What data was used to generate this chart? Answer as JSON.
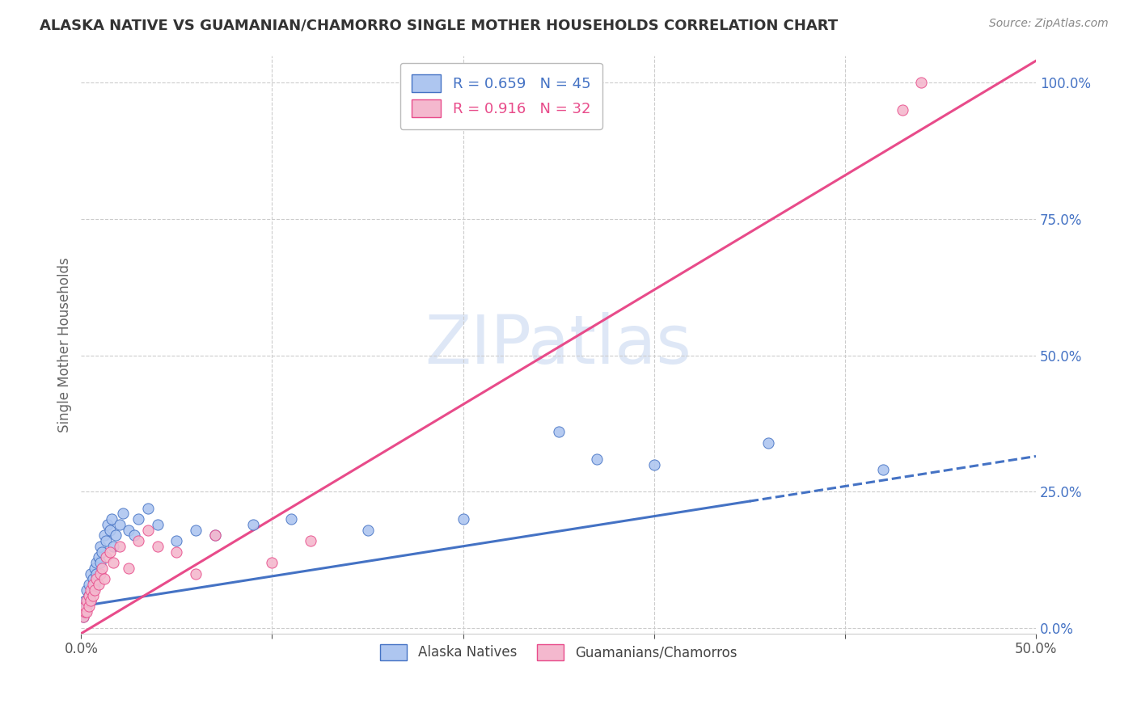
{
  "title": "ALASKA NATIVE VS GUAMANIAN/CHAMORRO SINGLE MOTHER HOUSEHOLDS CORRELATION CHART",
  "source": "Source: ZipAtlas.com",
  "ylabel": "Single Mother Households",
  "xlim": [
    0.0,
    0.5
  ],
  "ylim": [
    -0.01,
    1.05
  ],
  "yticks_right": [
    0.0,
    0.25,
    0.5,
    0.75,
    1.0
  ],
  "ytick_labels_right": [
    "0.0%",
    "25.0%",
    "50.0%",
    "75.0%",
    "100.0%"
  ],
  "legend1_label": "R = 0.659   N = 45",
  "legend2_label": "R = 0.916   N = 32",
  "watermark": "ZIPatlas",
  "watermark_color": "#c8d8f0",
  "alaska_scatter_x": [
    0.001,
    0.002,
    0.002,
    0.003,
    0.003,
    0.004,
    0.004,
    0.005,
    0.005,
    0.006,
    0.006,
    0.007,
    0.007,
    0.008,
    0.008,
    0.009,
    0.01,
    0.01,
    0.011,
    0.012,
    0.013,
    0.014,
    0.015,
    0.016,
    0.017,
    0.018,
    0.02,
    0.022,
    0.025,
    0.028,
    0.03,
    0.035,
    0.04,
    0.05,
    0.06,
    0.07,
    0.09,
    0.11,
    0.15,
    0.2,
    0.25,
    0.27,
    0.3,
    0.36,
    0.42
  ],
  "alaska_scatter_y": [
    0.02,
    0.03,
    0.05,
    0.04,
    0.07,
    0.06,
    0.08,
    0.05,
    0.1,
    0.07,
    0.09,
    0.11,
    0.08,
    0.12,
    0.1,
    0.13,
    0.12,
    0.15,
    0.14,
    0.17,
    0.16,
    0.19,
    0.18,
    0.2,
    0.15,
    0.17,
    0.19,
    0.21,
    0.18,
    0.17,
    0.2,
    0.22,
    0.19,
    0.16,
    0.18,
    0.17,
    0.19,
    0.2,
    0.18,
    0.2,
    0.36,
    0.31,
    0.3,
    0.34,
    0.29
  ],
  "guam_scatter_x": [
    0.001,
    0.002,
    0.002,
    0.003,
    0.003,
    0.004,
    0.004,
    0.005,
    0.005,
    0.006,
    0.006,
    0.007,
    0.008,
    0.009,
    0.01,
    0.011,
    0.012,
    0.013,
    0.015,
    0.017,
    0.02,
    0.025,
    0.03,
    0.035,
    0.04,
    0.05,
    0.06,
    0.07,
    0.1,
    0.12,
    0.43,
    0.44
  ],
  "guam_scatter_y": [
    0.02,
    0.03,
    0.04,
    0.03,
    0.05,
    0.04,
    0.06,
    0.05,
    0.07,
    0.06,
    0.08,
    0.07,
    0.09,
    0.08,
    0.1,
    0.11,
    0.09,
    0.13,
    0.14,
    0.12,
    0.15,
    0.11,
    0.16,
    0.18,
    0.15,
    0.14,
    0.1,
    0.17,
    0.12,
    0.16,
    0.95,
    1.0
  ],
  "alaska_line_slope": 0.55,
  "alaska_line_intercept": 0.04,
  "guam_line_slope": 2.1,
  "guam_line_intercept": -0.01,
  "alaska_line_color": "#4472c4",
  "guam_line_color": "#e84b8a",
  "alaska_scatter_color": "#aec6f0",
  "guam_scatter_color": "#f4b8ce",
  "background_color": "#ffffff",
  "grid_color": "#cccccc"
}
